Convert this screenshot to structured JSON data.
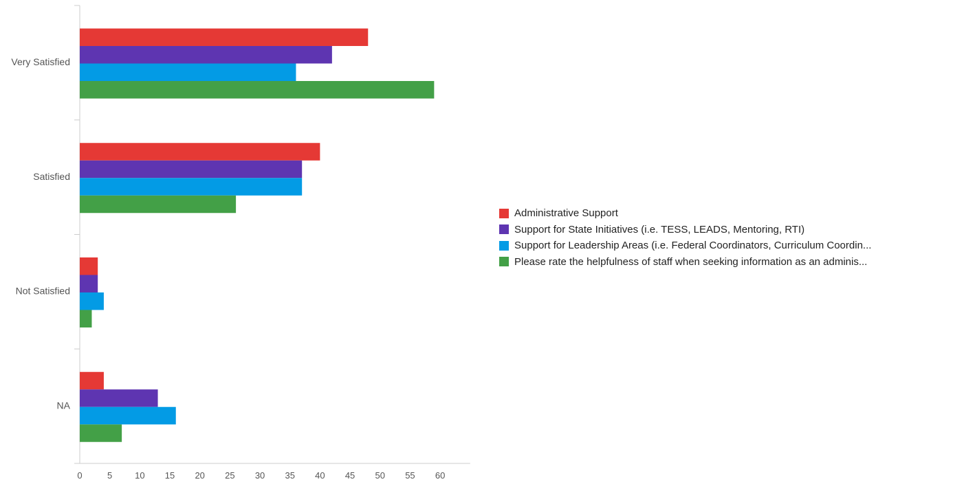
{
  "chart_data": {
    "type": "bar",
    "orientation": "horizontal",
    "categories": [
      "Very Satisfied",
      "Satisfied",
      "Not Satisfied",
      "NA"
    ],
    "series": [
      {
        "name": "Administrative Support",
        "color": "#e53935",
        "values": [
          48,
          40,
          3,
          4
        ]
      },
      {
        "name": "Support for State Initiatives (i.e. TESS, LEADS, Mentoring, RTI)",
        "color": "#5e35b1",
        "values": [
          42,
          37,
          3,
          13
        ]
      },
      {
        "name": "Support for Leadership Areas (i.e. Federal Coordinators, Curriculum Coordin...",
        "color": "#039be5",
        "values": [
          36,
          37,
          4,
          16
        ]
      },
      {
        "name": "Please rate the helpfulness of staff when seeking information as an adminis...",
        "color": "#43a047",
        "values": [
          59,
          26,
          2,
          7
        ]
      }
    ],
    "x_ticks": [
      "0",
      "5",
      "10",
      "15",
      "20",
      "25",
      "30",
      "35",
      "40",
      "45",
      "50",
      "55",
      "60"
    ],
    "xlim": [
      0,
      65
    ],
    "grid": false,
    "legend_position": "right"
  }
}
